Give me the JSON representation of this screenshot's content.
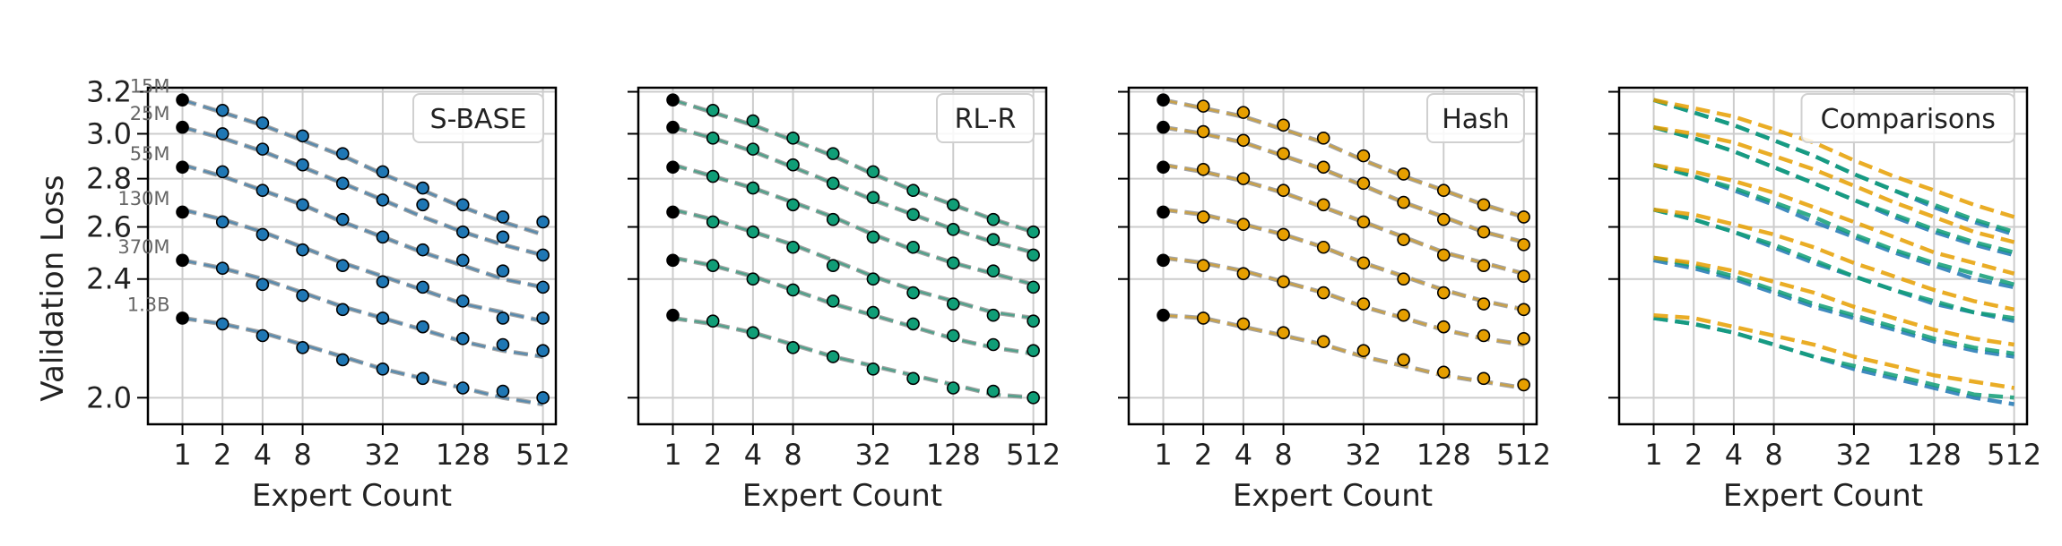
{
  "colors": {
    "sbase": "#1f77b4",
    "rlr": "#109e77",
    "hash": "#e69f00",
    "fit_gray": "#9a9a9a",
    "grid": "#cccccc",
    "frame": "#000000"
  },
  "shared_axes": {
    "xlabel": "Expert Count",
    "ylabel": "Validation Loss",
    "x_ticks": [
      1,
      2,
      4,
      8,
      32,
      128,
      512
    ],
    "x_tick_labels": [
      "1",
      "2",
      "4",
      "8",
      "32",
      "128",
      "512"
    ],
    "y_ticks": [
      2.0,
      2.4,
      2.6,
      2.8,
      3.0,
      3.2
    ],
    "y_tick_labels": [
      "2.0",
      "2.4",
      "2.6",
      "2.8",
      "3.0",
      "3.2"
    ],
    "x_scale": "log",
    "y_scale": "log",
    "xlim": [
      0.55,
      640
    ],
    "ylim": [
      1.92,
      3.22
    ],
    "grid": true
  },
  "model_sizes": [
    "15M",
    "25M",
    "55M",
    "130M",
    "370M",
    "1.3B"
  ],
  "chart_data": [
    {
      "type": "scatter",
      "legend": "S-BASE",
      "x": [
        1,
        2,
        4,
        8,
        16,
        32,
        64,
        128,
        256,
        512
      ],
      "series": [
        {
          "name": "15M",
          "values": [
            3.16,
            3.11,
            3.05,
            2.99,
            2.91,
            2.83,
            2.76,
            2.69,
            2.64,
            2.62
          ]
        },
        {
          "name": "25M",
          "values": [
            3.03,
            3.0,
            2.93,
            2.86,
            2.78,
            2.71,
            2.69,
            2.58,
            2.56,
            2.49
          ]
        },
        {
          "name": "55M",
          "values": [
            2.85,
            2.83,
            2.75,
            2.69,
            2.63,
            2.56,
            2.51,
            2.47,
            2.43,
            2.37
          ]
        },
        {
          "name": "130M",
          "values": [
            2.66,
            2.62,
            2.57,
            2.51,
            2.45,
            2.39,
            2.37,
            2.32,
            2.26,
            2.26
          ]
        },
        {
          "name": "370M",
          "values": [
            2.47,
            2.44,
            2.38,
            2.34,
            2.29,
            2.26,
            2.23,
            2.19,
            2.17,
            2.15
          ]
        },
        {
          "name": "1.3B",
          "values": [
            2.26,
            2.24,
            2.2,
            2.16,
            2.12,
            2.09,
            2.06,
            2.03,
            2.02,
            2.0
          ]
        }
      ],
      "fits": [
        [
          3.16,
          3.1,
          3.04,
          2.97,
          2.9,
          2.82,
          2.75,
          2.68,
          2.62,
          2.57
        ],
        [
          3.03,
          2.98,
          2.92,
          2.85,
          2.78,
          2.71,
          2.64,
          2.58,
          2.53,
          2.49
        ],
        [
          2.86,
          2.81,
          2.75,
          2.69,
          2.62,
          2.56,
          2.5,
          2.45,
          2.4,
          2.37
        ],
        [
          2.67,
          2.63,
          2.58,
          2.52,
          2.46,
          2.41,
          2.36,
          2.31,
          2.28,
          2.25
        ],
        [
          2.47,
          2.44,
          2.4,
          2.35,
          2.3,
          2.26,
          2.22,
          2.18,
          2.15,
          2.13
        ],
        [
          2.26,
          2.24,
          2.21,
          2.17,
          2.13,
          2.09,
          2.06,
          2.03,
          2.0,
          1.98
        ]
      ]
    },
    {
      "type": "scatter",
      "legend": "RL-R",
      "x": [
        1,
        2,
        4,
        8,
        16,
        32,
        64,
        128,
        256,
        512
      ],
      "series": [
        {
          "name": "15M",
          "values": [
            3.16,
            3.11,
            3.06,
            2.98,
            2.91,
            2.83,
            2.75,
            2.69,
            2.63,
            2.58
          ]
        },
        {
          "name": "25M",
          "values": [
            3.03,
            2.98,
            2.93,
            2.86,
            2.78,
            2.72,
            2.65,
            2.59,
            2.55,
            2.49
          ]
        },
        {
          "name": "55M",
          "values": [
            2.85,
            2.81,
            2.76,
            2.69,
            2.63,
            2.56,
            2.52,
            2.46,
            2.43,
            2.37
          ]
        },
        {
          "name": "130M",
          "values": [
            2.66,
            2.62,
            2.58,
            2.52,
            2.45,
            2.4,
            2.35,
            2.31,
            2.27,
            2.25
          ]
        },
        {
          "name": "370M",
          "values": [
            2.47,
            2.45,
            2.4,
            2.36,
            2.32,
            2.28,
            2.24,
            2.2,
            2.17,
            2.15
          ]
        },
        {
          "name": "1.3B",
          "values": [
            2.27,
            2.25,
            2.21,
            2.16,
            2.13,
            2.09,
            2.06,
            2.03,
            2.02,
            2.0
          ]
        }
      ],
      "fits": [
        [
          3.16,
          3.1,
          3.04,
          2.97,
          2.9,
          2.82,
          2.75,
          2.69,
          2.63,
          2.58
        ],
        [
          3.03,
          2.98,
          2.92,
          2.85,
          2.78,
          2.71,
          2.65,
          2.59,
          2.54,
          2.5
        ],
        [
          2.86,
          2.81,
          2.76,
          2.7,
          2.64,
          2.57,
          2.51,
          2.46,
          2.42,
          2.38
        ],
        [
          2.67,
          2.63,
          2.58,
          2.53,
          2.47,
          2.41,
          2.36,
          2.32,
          2.28,
          2.26
        ],
        [
          2.48,
          2.45,
          2.41,
          2.36,
          2.31,
          2.27,
          2.23,
          2.19,
          2.16,
          2.14
        ],
        [
          2.26,
          2.24,
          2.21,
          2.17,
          2.13,
          2.1,
          2.07,
          2.04,
          2.01,
          2.0
        ]
      ]
    },
    {
      "type": "scatter",
      "legend": "Hash",
      "x": [
        1,
        2,
        4,
        8,
        16,
        32,
        64,
        128,
        256,
        512
      ],
      "series": [
        {
          "name": "15M",
          "values": [
            3.16,
            3.13,
            3.1,
            3.04,
            2.98,
            2.9,
            2.82,
            2.75,
            2.69,
            2.64
          ]
        },
        {
          "name": "25M",
          "values": [
            3.03,
            3.01,
            2.97,
            2.91,
            2.85,
            2.78,
            2.7,
            2.63,
            2.58,
            2.53
          ]
        },
        {
          "name": "55M",
          "values": [
            2.85,
            2.84,
            2.8,
            2.75,
            2.69,
            2.62,
            2.55,
            2.49,
            2.45,
            2.41
          ]
        },
        {
          "name": "130M",
          "values": [
            2.66,
            2.64,
            2.61,
            2.57,
            2.52,
            2.46,
            2.4,
            2.35,
            2.31,
            2.29
          ]
        },
        {
          "name": "370M",
          "values": [
            2.47,
            2.45,
            2.42,
            2.39,
            2.35,
            2.31,
            2.27,
            2.23,
            2.2,
            2.19
          ]
        },
        {
          "name": "1.3B",
          "values": [
            2.27,
            2.26,
            2.24,
            2.21,
            2.18,
            2.15,
            2.12,
            2.08,
            2.06,
            2.04
          ]
        }
      ],
      "fits": [
        [
          3.16,
          3.12,
          3.08,
          3.02,
          2.96,
          2.88,
          2.81,
          2.75,
          2.69,
          2.64
        ],
        [
          3.03,
          3.0,
          2.96,
          2.9,
          2.84,
          2.77,
          2.7,
          2.64,
          2.58,
          2.54
        ],
        [
          2.86,
          2.83,
          2.79,
          2.74,
          2.68,
          2.62,
          2.56,
          2.5,
          2.46,
          2.42
        ],
        [
          2.67,
          2.65,
          2.61,
          2.57,
          2.52,
          2.46,
          2.41,
          2.36,
          2.32,
          2.29
        ],
        [
          2.48,
          2.46,
          2.43,
          2.39,
          2.35,
          2.3,
          2.26,
          2.22,
          2.19,
          2.17
        ],
        [
          2.27,
          2.26,
          2.23,
          2.2,
          2.17,
          2.13,
          2.1,
          2.07,
          2.05,
          2.03
        ]
      ]
    },
    {
      "type": "line",
      "legend": "Comparisons",
      "x": [
        1,
        2,
        4,
        8,
        16,
        32,
        64,
        128,
        256,
        512
      ],
      "series": [
        {
          "name": "S-BASE",
          "lines": [
            [
              3.16,
              3.1,
              3.04,
              2.97,
              2.9,
              2.82,
              2.75,
              2.68,
              2.62,
              2.57
            ],
            [
              3.03,
              2.98,
              2.92,
              2.85,
              2.78,
              2.71,
              2.64,
              2.58,
              2.53,
              2.49
            ],
            [
              2.86,
              2.81,
              2.75,
              2.69,
              2.62,
              2.56,
              2.5,
              2.45,
              2.4,
              2.37
            ],
            [
              2.67,
              2.63,
              2.58,
              2.52,
              2.46,
              2.41,
              2.36,
              2.31,
              2.28,
              2.25
            ],
            [
              2.47,
              2.44,
              2.4,
              2.35,
              2.3,
              2.26,
              2.22,
              2.18,
              2.15,
              2.13
            ],
            [
              2.26,
              2.24,
              2.21,
              2.17,
              2.13,
              2.09,
              2.06,
              2.03,
              2.0,
              1.98
            ]
          ]
        },
        {
          "name": "RL-R",
          "lines": [
            [
              3.16,
              3.1,
              3.04,
              2.97,
              2.9,
              2.82,
              2.75,
              2.69,
              2.63,
              2.58
            ],
            [
              3.03,
              2.98,
              2.92,
              2.85,
              2.78,
              2.71,
              2.65,
              2.59,
              2.54,
              2.5
            ],
            [
              2.86,
              2.81,
              2.76,
              2.7,
              2.64,
              2.57,
              2.51,
              2.46,
              2.42,
              2.38
            ],
            [
              2.67,
              2.63,
              2.58,
              2.53,
              2.47,
              2.41,
              2.36,
              2.32,
              2.28,
              2.26
            ],
            [
              2.48,
              2.45,
              2.41,
              2.36,
              2.31,
              2.27,
              2.23,
              2.19,
              2.16,
              2.14
            ],
            [
              2.26,
              2.24,
              2.21,
              2.17,
              2.13,
              2.1,
              2.07,
              2.04,
              2.01,
              2.0
            ]
          ]
        },
        {
          "name": "Hash",
          "lines": [
            [
              3.16,
              3.12,
              3.08,
              3.02,
              2.96,
              2.88,
              2.81,
              2.75,
              2.69,
              2.64
            ],
            [
              3.03,
              3.0,
              2.96,
              2.9,
              2.84,
              2.77,
              2.7,
              2.64,
              2.58,
              2.54
            ],
            [
              2.86,
              2.83,
              2.79,
              2.74,
              2.68,
              2.62,
              2.56,
              2.5,
              2.46,
              2.42
            ],
            [
              2.67,
              2.65,
              2.61,
              2.57,
              2.52,
              2.46,
              2.41,
              2.36,
              2.32,
              2.29
            ],
            [
              2.48,
              2.46,
              2.43,
              2.39,
              2.35,
              2.3,
              2.26,
              2.22,
              2.19,
              2.17
            ],
            [
              2.27,
              2.26,
              2.23,
              2.2,
              2.17,
              2.13,
              2.1,
              2.07,
              2.05,
              2.03
            ]
          ]
        }
      ]
    }
  ]
}
